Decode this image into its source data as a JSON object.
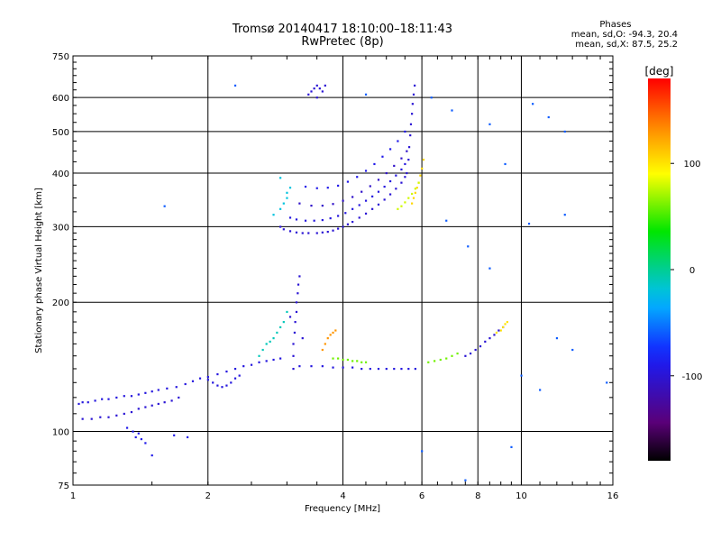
{
  "title": "Tromsø 20140417 18:10:00–18:11:43",
  "subtitle": "RwPretec (8p)",
  "phase_stats": {
    "header": "Phases",
    "line_o": "mean, sd,O: -94.3, 20.4",
    "line_x": "mean, sd,X:  87.5, 25.2"
  },
  "colorbar": {
    "label": "[deg]",
    "ticks": [
      {
        "value": 100,
        "label": "100"
      },
      {
        "value": 0,
        "label": "0"
      },
      {
        "value": -100,
        "label": "-100"
      }
    ],
    "range": [
      -180,
      180
    ]
  },
  "colors": {
    "grid": "#000000",
    "frame": "#000000"
  },
  "chart_data": {
    "type": "scatter",
    "title": "Tromsø 20140417 18:10:00–18:11:43",
    "subtitle": "RwPretec (8p)",
    "xlabel": "Frequency [MHz]",
    "ylabel": "Stationary phase Virtual Height [km]",
    "xscale": "log",
    "yscale": "log",
    "xlim": [
      1,
      16
    ],
    "ylim": [
      75,
      750
    ],
    "xticks": [
      1,
      2,
      4,
      6,
      8,
      10,
      16
    ],
    "yticks": [
      75,
      100,
      200,
      300,
      400,
      500,
      600,
      750
    ],
    "x_gridlines": [
      2,
      4,
      6,
      8,
      10
    ],
    "y_gridlines": [
      100,
      200,
      300,
      400,
      500,
      600
    ],
    "grid": true,
    "color_variable": "phase [deg]",
    "series": [
      {
        "points": [
          [
            1.03,
            116
          ],
          [
            1.05,
            117
          ],
          [
            1.08,
            117
          ],
          [
            1.12,
            118
          ],
          [
            1.16,
            119
          ],
          [
            1.2,
            119
          ],
          [
            1.25,
            120
          ],
          [
            1.3,
            121
          ],
          [
            1.35,
            121
          ],
          [
            1.4,
            122
          ],
          [
            1.45,
            123
          ],
          [
            1.5,
            124
          ],
          [
            1.55,
            125
          ],
          [
            1.62,
            126
          ],
          [
            1.7,
            127
          ],
          [
            1.78,
            129
          ],
          [
            1.85,
            131
          ],
          [
            1.92,
            133
          ],
          [
            2.0,
            134
          ],
          [
            2.1,
            136
          ],
          [
            2.2,
            138
          ],
          [
            2.3,
            140
          ],
          [
            2.4,
            142
          ],
          [
            2.5,
            143
          ],
          [
            2.6,
            145
          ],
          [
            2.7,
            146
          ],
          [
            2.8,
            147
          ],
          [
            2.9,
            148
          ]
        ],
        "phase": -95
      },
      {
        "points": [
          [
            1.05,
            107
          ],
          [
            1.1,
            107
          ],
          [
            1.15,
            108
          ],
          [
            1.2,
            108
          ],
          [
            1.25,
            109
          ],
          [
            1.3,
            110
          ],
          [
            1.35,
            111
          ],
          [
            1.4,
            113
          ],
          [
            1.45,
            114
          ],
          [
            1.5,
            115
          ],
          [
            1.55,
            116
          ],
          [
            1.6,
            117
          ],
          [
            1.66,
            118
          ],
          [
            1.72,
            120
          ]
        ],
        "phase": -100
      },
      {
        "points": [
          [
            1.32,
            102
          ],
          [
            1.36,
            100
          ],
          [
            1.4,
            99
          ],
          [
            1.38,
            97
          ],
          [
            1.42,
            96
          ],
          [
            1.45,
            94
          ],
          [
            1.5,
            88
          ],
          [
            1.68,
            98
          ],
          [
            1.8,
            97
          ]
        ],
        "phase": -90
      },
      {
        "points": [
          [
            2.9,
            300
          ],
          [
            2.95,
            296
          ],
          [
            3.05,
            293
          ],
          [
            3.15,
            291
          ],
          [
            3.25,
            290
          ],
          [
            3.35,
            290
          ],
          [
            3.5,
            290
          ],
          [
            3.6,
            291
          ],
          [
            3.7,
            292
          ],
          [
            3.8,
            294
          ],
          [
            3.9,
            297
          ],
          [
            4.0,
            300
          ],
          [
            4.1,
            304
          ],
          [
            4.2,
            308
          ],
          [
            4.35,
            315
          ],
          [
            4.5,
            322
          ],
          [
            4.65,
            330
          ],
          [
            4.8,
            338
          ],
          [
            4.95,
            347
          ],
          [
            5.1,
            357
          ],
          [
            5.25,
            368
          ],
          [
            5.4,
            380
          ],
          [
            5.5,
            392
          ]
        ],
        "phase": -100
      },
      {
        "points": [
          [
            3.05,
            315
          ],
          [
            3.15,
            312
          ],
          [
            3.3,
            310
          ],
          [
            3.45,
            310
          ],
          [
            3.6,
            311
          ],
          [
            3.75,
            314
          ],
          [
            3.9,
            318
          ],
          [
            4.05,
            323
          ],
          [
            4.2,
            330
          ],
          [
            4.35,
            337
          ],
          [
            4.5,
            345
          ],
          [
            4.65,
            353
          ],
          [
            4.8,
            362
          ],
          [
            4.95,
            372
          ],
          [
            5.1,
            383
          ],
          [
            5.25,
            395
          ],
          [
            5.4,
            408
          ],
          [
            5.5,
            420
          ]
        ],
        "phase": -95
      },
      {
        "points": [
          [
            3.2,
            340
          ],
          [
            3.4,
            336
          ],
          [
            3.6,
            336
          ],
          [
            3.8,
            339
          ],
          [
            4.0,
            345
          ],
          [
            4.2,
            352
          ],
          [
            4.4,
            362
          ],
          [
            4.6,
            373
          ],
          [
            4.8,
            386
          ],
          [
            5.0,
            400
          ],
          [
            5.2,
            416
          ],
          [
            5.4,
            433
          ],
          [
            5.55,
            450
          ]
        ],
        "phase": -105
      },
      {
        "points": [
          [
            3.3,
            372
          ],
          [
            3.5,
            369
          ],
          [
            3.7,
            370
          ],
          [
            3.9,
            374
          ],
          [
            4.1,
            382
          ],
          [
            4.3,
            392
          ],
          [
            4.5,
            405
          ],
          [
            4.7,
            420
          ],
          [
            4.9,
            437
          ],
          [
            5.1,
            455
          ],
          [
            5.3,
            475
          ],
          [
            5.5,
            500
          ]
        ],
        "phase": -90
      },
      {
        "points": [
          [
            5.55,
            400
          ],
          [
            5.6,
            430
          ],
          [
            5.62,
            460
          ],
          [
            5.65,
            490
          ],
          [
            5.67,
            520
          ],
          [
            5.7,
            550
          ],
          [
            5.72,
            580
          ],
          [
            5.75,
            610
          ],
          [
            5.78,
            640
          ]
        ],
        "phase": -100
      },
      {
        "points": [
          [
            5.7,
            340
          ],
          [
            5.75,
            350
          ],
          [
            5.8,
            360
          ],
          [
            5.85,
            370
          ],
          [
            5.9,
            380
          ],
          [
            5.95,
            395
          ],
          [
            6.0,
            410
          ],
          [
            6.05,
            430
          ]
        ],
        "phase": 105
      },
      {
        "points": [
          [
            5.3,
            330
          ],
          [
            5.4,
            335
          ],
          [
            5.5,
            342
          ],
          [
            5.6,
            350
          ],
          [
            5.7,
            358
          ],
          [
            5.8,
            368
          ],
          [
            5.9,
            380
          ]
        ],
        "phase": 80
      },
      {
        "points": [
          [
            3.35,
            610
          ],
          [
            3.4,
            620
          ],
          [
            3.45,
            630
          ],
          [
            3.5,
            640
          ],
          [
            3.55,
            630
          ],
          [
            3.6,
            620
          ],
          [
            3.65,
            640
          ],
          [
            3.5,
            600
          ]
        ],
        "phase": -100
      },
      {
        "points": [
          [
            3.1,
            140
          ],
          [
            3.1,
            150
          ],
          [
            3.1,
            160
          ],
          [
            3.12,
            170
          ],
          [
            3.13,
            180
          ],
          [
            3.15,
            190
          ],
          [
            3.15,
            200
          ],
          [
            3.17,
            210
          ],
          [
            3.18,
            220
          ],
          [
            3.2,
            230
          ],
          [
            3.05,
            185
          ],
          [
            3.25,
            165
          ]
        ],
        "phase": -100
      },
      {
        "points": [
          [
            3.2,
            142
          ],
          [
            3.4,
            142
          ],
          [
            3.6,
            142
          ],
          [
            3.8,
            141
          ],
          [
            4.0,
            141
          ],
          [
            4.2,
            141
          ],
          [
            4.4,
            140
          ],
          [
            4.6,
            140
          ],
          [
            4.8,
            140
          ],
          [
            5.0,
            140
          ],
          [
            5.2,
            140
          ],
          [
            5.4,
            140
          ],
          [
            5.6,
            140
          ],
          [
            5.8,
            140
          ]
        ],
        "phase": -95
      },
      {
        "points": [
          [
            3.8,
            148
          ],
          [
            3.9,
            148
          ],
          [
            4.0,
            147
          ],
          [
            4.1,
            147
          ],
          [
            4.2,
            146
          ],
          [
            4.3,
            146
          ],
          [
            4.4,
            145
          ],
          [
            4.5,
            145
          ]
        ],
        "phase": 60
      },
      {
        "points": [
          [
            3.6,
            155
          ],
          [
            3.65,
            160
          ],
          [
            3.7,
            165
          ],
          [
            3.75,
            168
          ],
          [
            3.8,
            170
          ],
          [
            3.85,
            172
          ]
        ],
        "phase": 130
      },
      {
        "points": [
          [
            6.2,
            145
          ],
          [
            6.4,
            146
          ],
          [
            6.6,
            147
          ],
          [
            6.8,
            148
          ],
          [
            7.0,
            150
          ],
          [
            7.2,
            152
          ]
        ],
        "phase": 60
      },
      {
        "points": [
          [
            7.5,
            150
          ],
          [
            7.7,
            152
          ],
          [
            7.9,
            155
          ],
          [
            8.1,
            158
          ],
          [
            8.3,
            162
          ],
          [
            8.5,
            165
          ],
          [
            8.7,
            168
          ],
          [
            8.9,
            172
          ],
          [
            9.1,
            175
          ]
        ],
        "phase": -100
      },
      {
        "points": [
          [
            8.8,
            170
          ],
          [
            9.0,
            172
          ],
          [
            9.1,
            175
          ],
          [
            9.2,
            178
          ],
          [
            9.3,
            180
          ]
        ],
        "phase": 100
      },
      {
        "points": [
          [
            2.0,
            132
          ],
          [
            2.05,
            130
          ],
          [
            2.1,
            128
          ],
          [
            2.15,
            127
          ],
          [
            2.2,
            128
          ],
          [
            2.25,
            130
          ],
          [
            2.3,
            133
          ],
          [
            2.35,
            135
          ]
        ],
        "phase": -95
      },
      {
        "points": [
          [
            2.6,
            150
          ],
          [
            2.65,
            155
          ],
          [
            2.7,
            160
          ],
          [
            2.75,
            162
          ],
          [
            2.8,
            165
          ],
          [
            2.85,
            170
          ],
          [
            2.9,
            175
          ],
          [
            2.95,
            180
          ],
          [
            3.0,
            190
          ]
        ],
        "phase": -10
      },
      {
        "points": [
          [
            2.8,
            320
          ],
          [
            2.9,
            330
          ],
          [
            2.95,
            340
          ],
          [
            3.0,
            350
          ],
          [
            3.0,
            360
          ],
          [
            3.05,
            370
          ],
          [
            2.9,
            390
          ]
        ],
        "phase": -20
      },
      {
        "points": [
          [
            1.6,
            335
          ],
          [
            2.3,
            640
          ],
          [
            4.5,
            610
          ],
          [
            6.3,
            600
          ],
          [
            7.0,
            560
          ],
          [
            8.5,
            520
          ],
          [
            9.2,
            420
          ],
          [
            10.4,
            305
          ],
          [
            10.6,
            580
          ],
          [
            11.5,
            540
          ],
          [
            12.5,
            500
          ],
          [
            12.5,
            320
          ],
          [
            15.5,
            130
          ],
          [
            6.0,
            90
          ],
          [
            7.5,
            77
          ],
          [
            9.5,
            92
          ],
          [
            10.0,
            135
          ],
          [
            11.0,
            125
          ],
          [
            12.0,
            165
          ],
          [
            13.0,
            155
          ],
          [
            8.5,
            240
          ],
          [
            6.8,
            310
          ],
          [
            7.6,
            270
          ]
        ],
        "phase": -60
      }
    ]
  }
}
